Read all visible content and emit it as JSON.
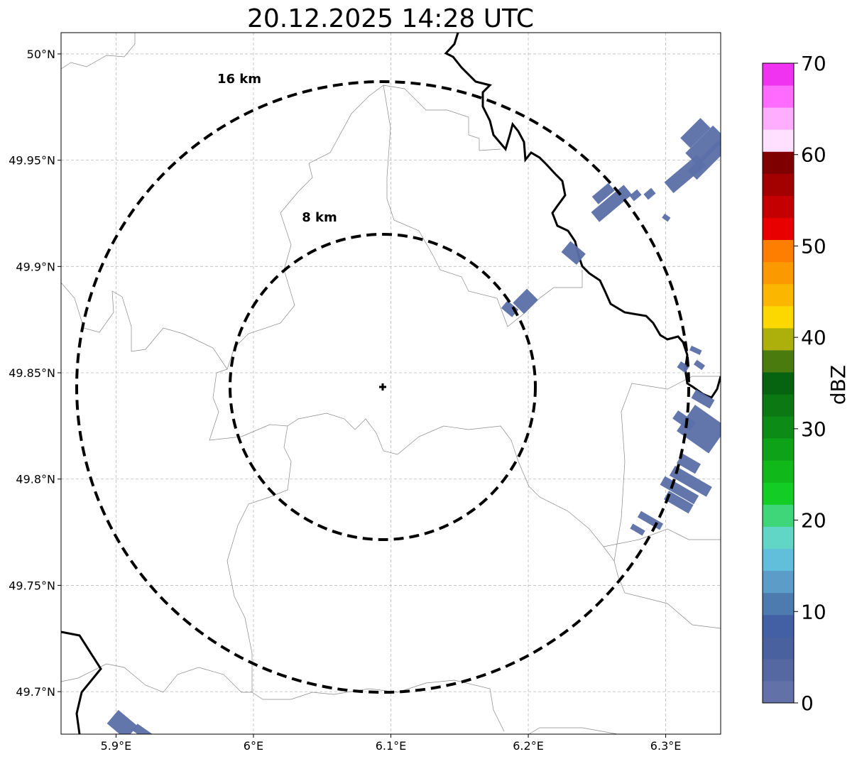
{
  "title": "20.12.2025 14:28 UTC",
  "map": {
    "x_ticks": [
      "5.9°E",
      "6°E",
      "6.1°E",
      "6.2°E",
      "6.3°E"
    ],
    "y_ticks": [
      "50°N",
      "49.95°N",
      "49.9°N",
      "49.85°N",
      "49.8°N",
      "49.75°N",
      "49.7°N"
    ],
    "x_tick_values": [
      5.9,
      6.0,
      6.1,
      6.2,
      6.3
    ],
    "y_tick_values": [
      50.0,
      49.95,
      49.9,
      49.85,
      49.8,
      49.75,
      49.7
    ],
    "lon_range": [
      5.86,
      6.34
    ],
    "lat_range": [
      49.68,
      50.01
    ],
    "grid": true,
    "radar_site": {
      "lon": 6.096,
      "lat": 49.843
    },
    "rings": [
      {
        "label": "8 km",
        "radius_km": 8
      },
      {
        "label": "16 km",
        "radius_km": 16
      }
    ]
  },
  "colorbar": {
    "label": "dBZ",
    "ticks": [
      "0",
      "10",
      "20",
      "30",
      "40",
      "50",
      "60",
      "70"
    ],
    "range": [
      0,
      70
    ],
    "colors": [
      "#6272a8",
      "#5568a2",
      "#4a61a0",
      "#4260a3",
      "#4d7bb0",
      "#5b9dc8",
      "#62bfdc",
      "#62d6c6",
      "#3fd67a",
      "#13cc24",
      "#10b81a",
      "#0ea218",
      "#0c8c16",
      "#0b7813",
      "#066410",
      "#4a7b0f",
      "#adb00b",
      "#fdd800",
      "#fbb700",
      "#fb9a00",
      "#fd7e00",
      "#e80000",
      "#c40000",
      "#a30000",
      "#7f0000",
      "#ffe0ff",
      "#ffaeff",
      "#ff6bff",
      "#f033f0"
    ]
  }
}
